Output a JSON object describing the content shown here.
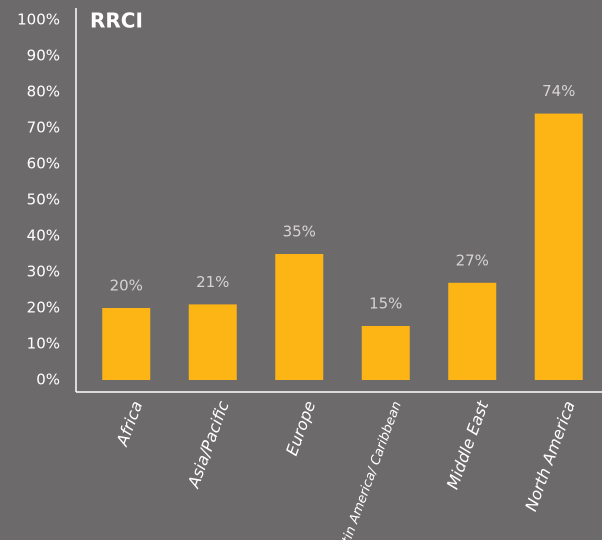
{
  "chart_data": {
    "type": "bar",
    "title": "RRCI",
    "categories": [
      "Africa",
      "Asia/Pacific",
      "Europe",
      "Latin America/ Caribbean",
      "Middle East",
      "North America"
    ],
    "values": [
      20,
      21,
      35,
      15,
      27,
      74
    ],
    "value_labels": [
      "20%",
      "21%",
      "35%",
      "15%",
      "27%",
      "74%"
    ],
    "color": "#fdb515",
    "ylim": [
      0,
      100
    ],
    "yticks": [
      {
        "value": 0,
        "label": "0%"
      },
      {
        "value": 10,
        "label": "10%"
      },
      {
        "value": 20,
        "label": "20%"
      },
      {
        "value": 30,
        "label": "30%"
      },
      {
        "value": 40,
        "label": "40%"
      },
      {
        "value": 50,
        "label": "50%"
      },
      {
        "value": 60,
        "label": "60%"
      },
      {
        "value": 70,
        "label": "70%"
      },
      {
        "value": 80,
        "label": "80%"
      },
      {
        "value": 90,
        "label": "90%"
      },
      {
        "value": 100,
        "label": "100%"
      }
    ],
    "grid": false
  }
}
